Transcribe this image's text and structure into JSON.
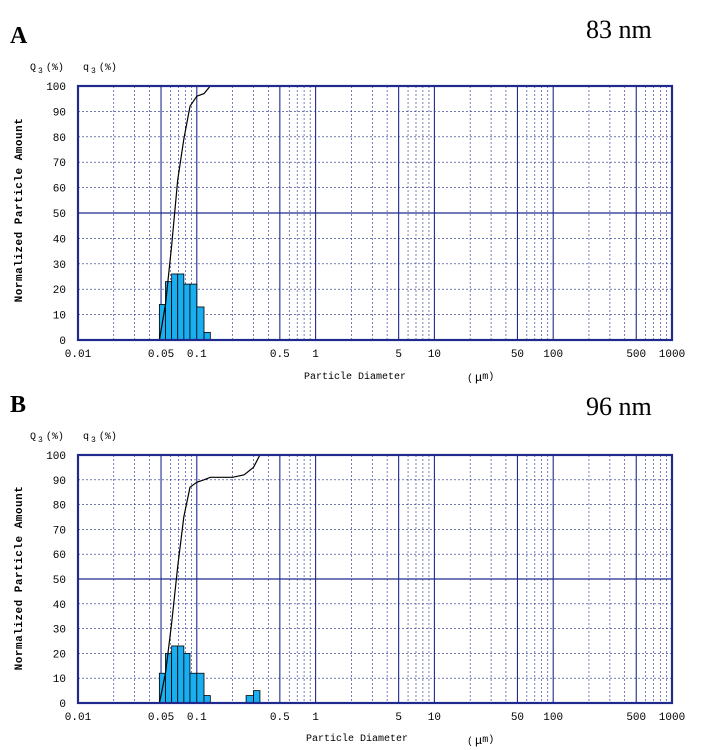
{
  "chart_data": [
    {
      "type": "bar",
      "panel": "A",
      "size_label": "83 nm",
      "q_header": [
        "Q",
        "3",
        "(%)",
        "q",
        "3",
        "(%)"
      ],
      "ylabel": "Normalized Particle Amount",
      "xlabel": "Particle Diameter",
      "xunit": [
        "(",
        "μ",
        "m)"
      ],
      "xscale": "log",
      "xlim": [
        0.01,
        1000
      ],
      "ylim": [
        0,
        100
      ],
      "xticks": [
        "0.01",
        "0.05",
        "0.1",
        "0.5",
        "1",
        "5",
        "10",
        "50",
        "100",
        "500",
        "1000"
      ],
      "xtick_values": [
        0.01,
        0.05,
        0.1,
        0.5,
        1,
        5,
        10,
        50,
        100,
        500,
        1000
      ],
      "yticks": [
        "0",
        "10",
        "20",
        "30",
        "40",
        "50",
        "60",
        "70",
        "80",
        "90",
        "100"
      ],
      "ytick_values": [
        0,
        10,
        20,
        30,
        40,
        50,
        60,
        70,
        80,
        90,
        100
      ],
      "reference_line_y": 50,
      "bins": [
        {
          "lo": 0.0484,
          "hi": 0.0545,
          "value": 14
        },
        {
          "lo": 0.0545,
          "hi": 0.0614,
          "value": 23
        },
        {
          "lo": 0.0614,
          "hi": 0.0691,
          "value": 26
        },
        {
          "lo": 0.0691,
          "hi": 0.0778,
          "value": 26
        },
        {
          "lo": 0.0778,
          "hi": 0.0876,
          "value": 22
        },
        {
          "lo": 0.0876,
          "hi": 0.1,
          "value": 22
        },
        {
          "lo": 0.1,
          "hi": 0.115,
          "value": 13
        },
        {
          "lo": 0.115,
          "hi": 0.13,
          "value": 3
        }
      ],
      "cumulative": {
        "x": [
          0.04,
          0.0484,
          0.0545,
          0.0614,
          0.0691,
          0.0778,
          0.0876,
          0.1,
          0.115,
          0.13,
          0.15
        ],
        "y": [
          0,
          0,
          14,
          37,
          63,
          79,
          92,
          96,
          97,
          100,
          100
        ]
      }
    },
    {
      "type": "bar",
      "panel": "B",
      "size_label": "96 nm",
      "q_header": [
        "Q",
        "3",
        "(%)",
        "q",
        "3",
        "(%)"
      ],
      "ylabel": "Normalized Particle Amount",
      "xlabel": "Particle Diameter",
      "xunit": [
        "(",
        "μ",
        "m)"
      ],
      "xscale": "log",
      "xlim": [
        0.01,
        1000
      ],
      "ylim": [
        0,
        100
      ],
      "xticks": [
        "0.01",
        "0.05",
        "0.1",
        "0.5",
        "1",
        "5",
        "10",
        "50",
        "100",
        "500",
        "1000"
      ],
      "xtick_values": [
        0.01,
        0.05,
        0.1,
        0.5,
        1,
        5,
        10,
        50,
        100,
        500,
        1000
      ],
      "yticks": [
        "0",
        "10",
        "20",
        "30",
        "40",
        "50",
        "60",
        "70",
        "80",
        "90",
        "100"
      ],
      "ytick_values": [
        0,
        10,
        20,
        30,
        40,
        50,
        60,
        70,
        80,
        90,
        100
      ],
      "reference_line_y": 50,
      "bins": [
        {
          "lo": 0.0484,
          "hi": 0.0545,
          "value": 12
        },
        {
          "lo": 0.0545,
          "hi": 0.0614,
          "value": 20
        },
        {
          "lo": 0.0614,
          "hi": 0.0691,
          "value": 23
        },
        {
          "lo": 0.0691,
          "hi": 0.0778,
          "value": 23
        },
        {
          "lo": 0.0778,
          "hi": 0.0876,
          "value": 20
        },
        {
          "lo": 0.0876,
          "hi": 0.1,
          "value": 12
        },
        {
          "lo": 0.1,
          "hi": 0.115,
          "value": 12
        },
        {
          "lo": 0.115,
          "hi": 0.13,
          "value": 3
        },
        {
          "lo": 0.26,
          "hi": 0.3,
          "value": 3
        },
        {
          "lo": 0.3,
          "hi": 0.34,
          "value": 5
        }
      ],
      "cumulative": {
        "x": [
          0.035,
          0.045,
          0.0484,
          0.0545,
          0.0614,
          0.0691,
          0.0778,
          0.0876,
          0.1,
          0.115,
          0.13,
          0.16,
          0.2,
          0.25,
          0.3,
          0.34,
          0.4
        ],
        "y": [
          0,
          0,
          0,
          12,
          32,
          55,
          75,
          87,
          89,
          90,
          91,
          91,
          91,
          92,
          95,
          100,
          100
        ]
      }
    }
  ]
}
